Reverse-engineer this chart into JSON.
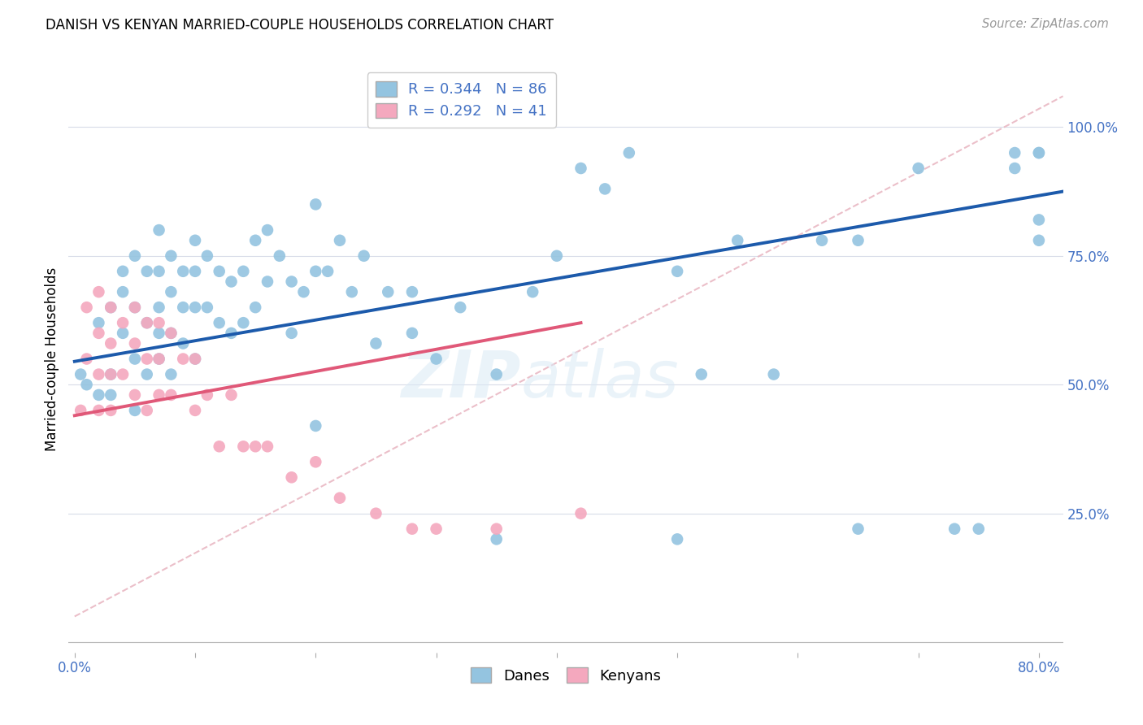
{
  "title": "DANISH VS KENYAN MARRIED-COUPLE HOUSEHOLDS CORRELATION CHART",
  "source": "Source: ZipAtlas.com",
  "ylabel": "Married-couple Households",
  "xlim": [
    -0.005,
    0.82
  ],
  "ylim": [
    -0.02,
    1.12
  ],
  "xticks": [
    0.0,
    0.1,
    0.2,
    0.3,
    0.4,
    0.5,
    0.6,
    0.7,
    0.8
  ],
  "xticklabels": [
    "0.0%",
    "",
    "",
    "",
    "",
    "",
    "",
    "",
    "80.0%"
  ],
  "yticks": [
    0.0,
    0.25,
    0.5,
    0.75,
    1.0
  ],
  "yticklabels": [
    "",
    "25.0%",
    "50.0%",
    "75.0%",
    "100.0%"
  ],
  "danes_color": "#94c4e0",
  "kenyans_color": "#f4a8be",
  "danes_line_color": "#1c5aab",
  "kenyans_line_color": "#e05878",
  "dashed_line_color": "#e8b4c0",
  "danes_R": 0.344,
  "danes_N": 86,
  "kenyans_R": 0.292,
  "kenyans_N": 41,
  "tick_color": "#4472c4",
  "grid_color": "#d8dce8",
  "danes_x": [
    0.005,
    0.01,
    0.02,
    0.02,
    0.03,
    0.03,
    0.03,
    0.04,
    0.04,
    0.04,
    0.05,
    0.05,
    0.05,
    0.05,
    0.06,
    0.06,
    0.06,
    0.07,
    0.07,
    0.07,
    0.07,
    0.07,
    0.08,
    0.08,
    0.08,
    0.08,
    0.09,
    0.09,
    0.09,
    0.1,
    0.1,
    0.1,
    0.1,
    0.11,
    0.11,
    0.12,
    0.12,
    0.13,
    0.13,
    0.14,
    0.14,
    0.15,
    0.15,
    0.16,
    0.16,
    0.17,
    0.18,
    0.18,
    0.19,
    0.2,
    0.2,
    0.21,
    0.22,
    0.23,
    0.24,
    0.25,
    0.26,
    0.28,
    0.28,
    0.3,
    0.32,
    0.35,
    0.38,
    0.4,
    0.42,
    0.44,
    0.46,
    0.5,
    0.52,
    0.55,
    0.58,
    0.62,
    0.65,
    0.7,
    0.73,
    0.75,
    0.78,
    0.78,
    0.8,
    0.8,
    0.8,
    0.8,
    0.2,
    0.35,
    0.5,
    0.65
  ],
  "danes_y": [
    0.52,
    0.5,
    0.62,
    0.48,
    0.65,
    0.52,
    0.48,
    0.68,
    0.6,
    0.72,
    0.75,
    0.65,
    0.55,
    0.45,
    0.72,
    0.62,
    0.52,
    0.8,
    0.72,
    0.65,
    0.6,
    0.55,
    0.75,
    0.68,
    0.6,
    0.52,
    0.72,
    0.65,
    0.58,
    0.78,
    0.72,
    0.65,
    0.55,
    0.75,
    0.65,
    0.72,
    0.62,
    0.7,
    0.6,
    0.72,
    0.62,
    0.78,
    0.65,
    0.8,
    0.7,
    0.75,
    0.7,
    0.6,
    0.68,
    0.85,
    0.72,
    0.72,
    0.78,
    0.68,
    0.75,
    0.58,
    0.68,
    0.68,
    0.6,
    0.55,
    0.65,
    0.52,
    0.68,
    0.75,
    0.92,
    0.88,
    0.95,
    0.72,
    0.52,
    0.78,
    0.52,
    0.78,
    0.78,
    0.92,
    0.22,
    0.22,
    0.92,
    0.95,
    0.95,
    0.95,
    0.78,
    0.82,
    0.42,
    0.2,
    0.2,
    0.22
  ],
  "kenyans_x": [
    0.005,
    0.01,
    0.01,
    0.02,
    0.02,
    0.02,
    0.02,
    0.03,
    0.03,
    0.03,
    0.03,
    0.04,
    0.04,
    0.05,
    0.05,
    0.05,
    0.06,
    0.06,
    0.06,
    0.07,
    0.07,
    0.07,
    0.08,
    0.08,
    0.09,
    0.1,
    0.1,
    0.11,
    0.12,
    0.13,
    0.14,
    0.15,
    0.16,
    0.18,
    0.2,
    0.22,
    0.25,
    0.28,
    0.3,
    0.35,
    0.42
  ],
  "kenyans_y": [
    0.45,
    0.65,
    0.55,
    0.68,
    0.6,
    0.52,
    0.45,
    0.65,
    0.58,
    0.52,
    0.45,
    0.62,
    0.52,
    0.65,
    0.58,
    0.48,
    0.62,
    0.55,
    0.45,
    0.62,
    0.55,
    0.48,
    0.6,
    0.48,
    0.55,
    0.55,
    0.45,
    0.48,
    0.38,
    0.48,
    0.38,
    0.38,
    0.38,
    0.32,
    0.35,
    0.28,
    0.25,
    0.22,
    0.22,
    0.22,
    0.25
  ],
  "danes_line_x0": 0.0,
  "danes_line_x1": 0.82,
  "danes_line_y0": 0.545,
  "danes_line_y1": 0.875,
  "kenyans_line_x0": 0.0,
  "kenyans_line_x1": 0.42,
  "kenyans_line_y0": 0.44,
  "kenyans_line_y1": 0.62,
  "dashed_line_x0": 0.0,
  "dashed_line_x1": 0.82,
  "dashed_line_y0": 0.05,
  "dashed_line_y1": 1.06
}
